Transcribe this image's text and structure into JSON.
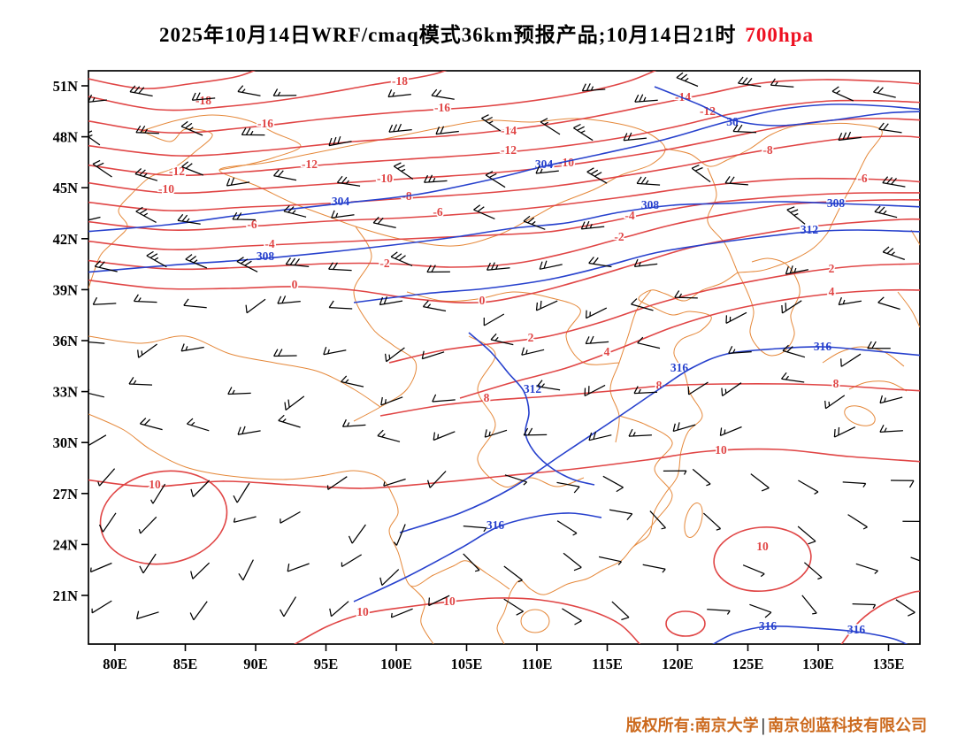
{
  "title": {
    "text": "2025年10月14日WRF/cmaq模式36km预报产品;10月14日21时",
    "level": "700hpa",
    "level_color": "#ee1122"
  },
  "axes": {
    "lat": [
      "51N",
      "48N",
      "45N",
      "42N",
      "39N",
      "36N",
      "33N",
      "30N",
      "27N",
      "24N",
      "21N"
    ],
    "lon": [
      "80E",
      "85E",
      "90E",
      "95E",
      "100E",
      "105E",
      "110E",
      "115E",
      "120E",
      "125E",
      "130E",
      "135E"
    ]
  },
  "contours": {
    "temperature": {
      "color": "#e04545",
      "values": [
        "-18",
        "-16",
        "-14",
        "-12",
        "-10",
        "-8",
        "-6",
        "-4",
        "-2",
        "0",
        "2",
        "4",
        "8",
        "10"
      ]
    },
    "geopotential_height": {
      "color": "#2741cd",
      "values": [
        "30",
        "304",
        "308",
        "312",
        "316"
      ]
    }
  },
  "map": {
    "boundary_color": "#e5883a",
    "wind_barb_color": "#000000",
    "frame_color": "#000000"
  },
  "footer": {
    "owner": "版权所有:南京大学",
    "divider": "|",
    "company": "南京创蓝科技有限公司"
  }
}
